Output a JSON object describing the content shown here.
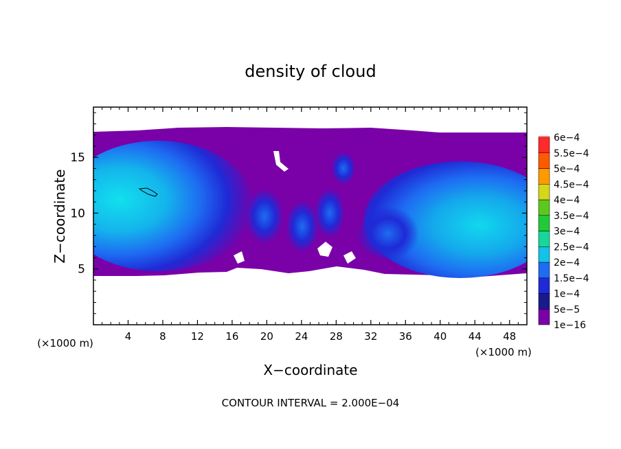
{
  "chart_data": {
    "type": "heatmap",
    "title": "density of cloud",
    "xlabel": "X−coordinate",
    "ylabel": "Z−coordinate",
    "x_unit": "(×1000 m)",
    "y_unit": "(×1000 m)",
    "xlim": [
      0,
      50
    ],
    "ylim": [
      0,
      19.5
    ],
    "xticks": [
      4,
      8,
      12,
      16,
      20,
      24,
      28,
      32,
      36,
      40,
      44,
      48
    ],
    "yticks": [
      5,
      10,
      15
    ],
    "colorbar": {
      "levels": [
        "1e−16",
        "5e−5",
        "1e−4",
        "1.5e−4",
        "2e−4",
        "2.5e−4",
        "3e−4",
        "3.5e−4",
        "4e−4",
        "4.5e−4",
        "5e−4",
        "5.5e−4",
        "6e−4"
      ],
      "colors": [
        "#7a00a8",
        "#1a1a8c",
        "#1f2ad6",
        "#1e6cf2",
        "#12c2e8",
        "#19d69a",
        "#22c93a",
        "#5cc81e",
        "#d6d61a",
        "#ff9a00",
        "#ff5a00",
        "#ff2a2a",
        "#ff7a7a"
      ]
    },
    "note": "CONTOUR INTERVAL = 2.000E−04",
    "grid": false
  }
}
